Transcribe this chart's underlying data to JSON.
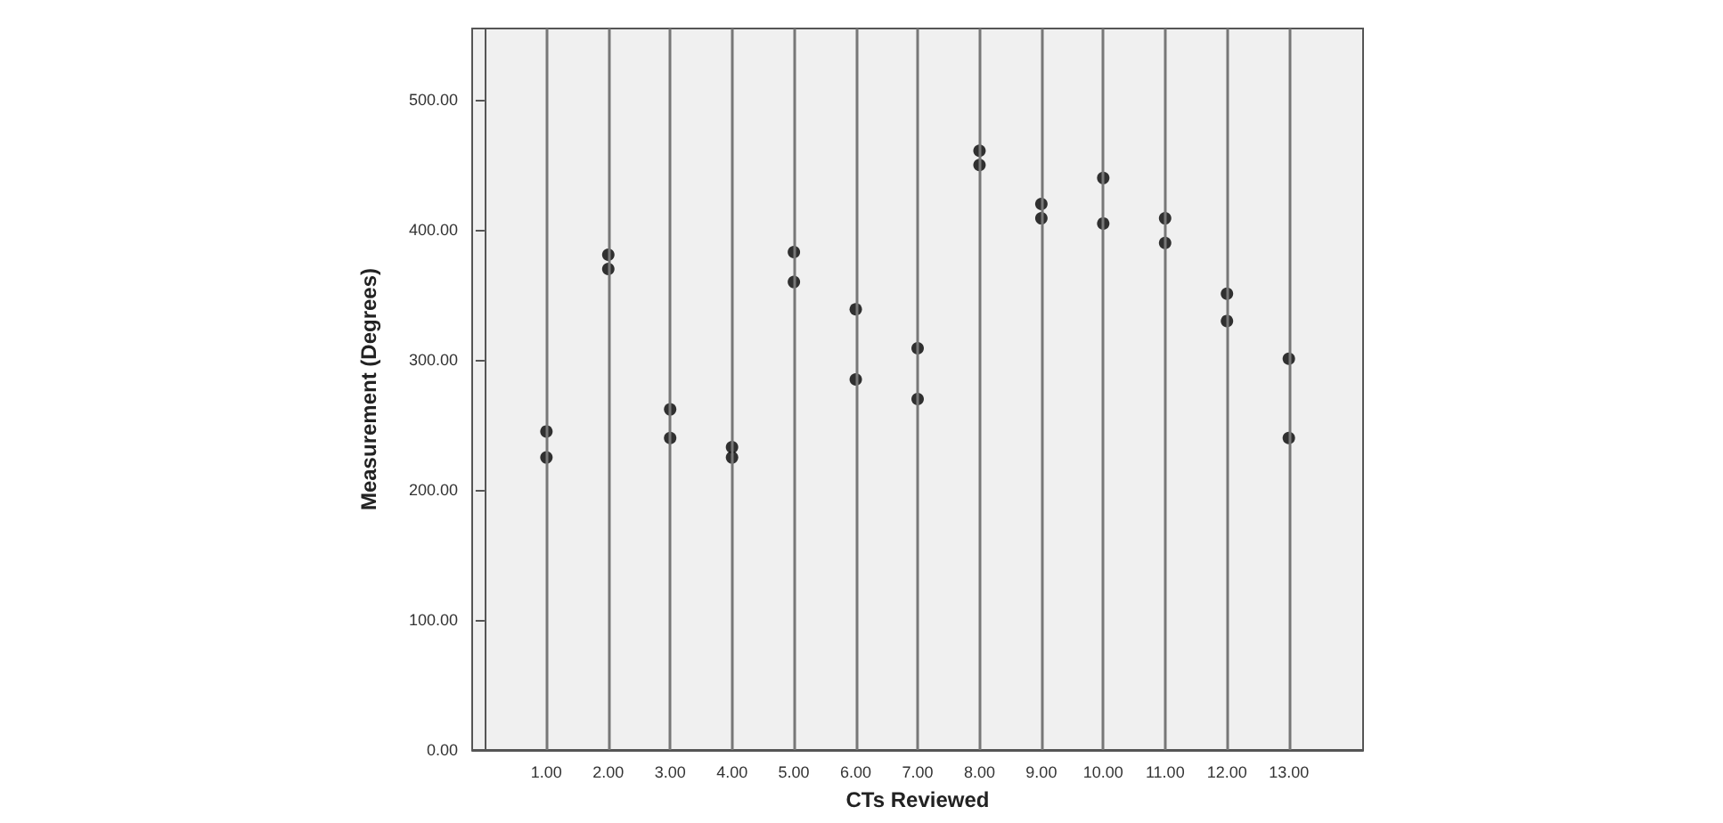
{
  "chart_data": {
    "type": "scatter",
    "xlabel": "CTs Reviewed",
    "ylabel": "Measurement (Degrees)",
    "x": [
      1,
      1,
      2,
      2,
      3,
      3,
      4,
      4,
      5,
      5,
      6,
      6,
      7,
      7,
      8,
      8,
      9,
      9,
      10,
      10,
      11,
      11,
      12,
      12,
      13,
      13
    ],
    "values": [
      245,
      225,
      381,
      370,
      262,
      240,
      233,
      225,
      383,
      360,
      339,
      285,
      309,
      270,
      461,
      450,
      420,
      409,
      440,
      405,
      409,
      390,
      351,
      330,
      301,
      240
    ],
    "color": "#000000",
    "marker": "circle",
    "grid": "x",
    "xlim": [
      -0.2,
      14.2
    ],
    "xticks": [
      {
        "value": 1,
        "label": "1.00"
      },
      {
        "value": 2,
        "label": "2.00"
      },
      {
        "value": 3,
        "label": "3.00"
      },
      {
        "value": 4,
        "label": "4.00"
      },
      {
        "value": 5,
        "label": "5.00"
      },
      {
        "value": 6,
        "label": "6.00"
      },
      {
        "value": 7,
        "label": "7.00"
      },
      {
        "value": 8,
        "label": "8.00"
      },
      {
        "value": 9,
        "label": "9.00"
      },
      {
        "value": 10,
        "label": "10.00"
      },
      {
        "value": 11,
        "label": "11.00"
      },
      {
        "value": 12,
        "label": "12.00"
      },
      {
        "value": 13,
        "label": "13.00"
      }
    ],
    "ylim": [
      0,
      555
    ],
    "yticks": [
      {
        "value": 0,
        "label": "0.00"
      },
      {
        "value": 100,
        "label": "100.00"
      },
      {
        "value": 200,
        "label": "200.00"
      },
      {
        "value": 300,
        "label": "300.00"
      },
      {
        "value": 400,
        "label": "400.00"
      },
      {
        "value": 500,
        "label": "500.00"
      }
    ]
  }
}
